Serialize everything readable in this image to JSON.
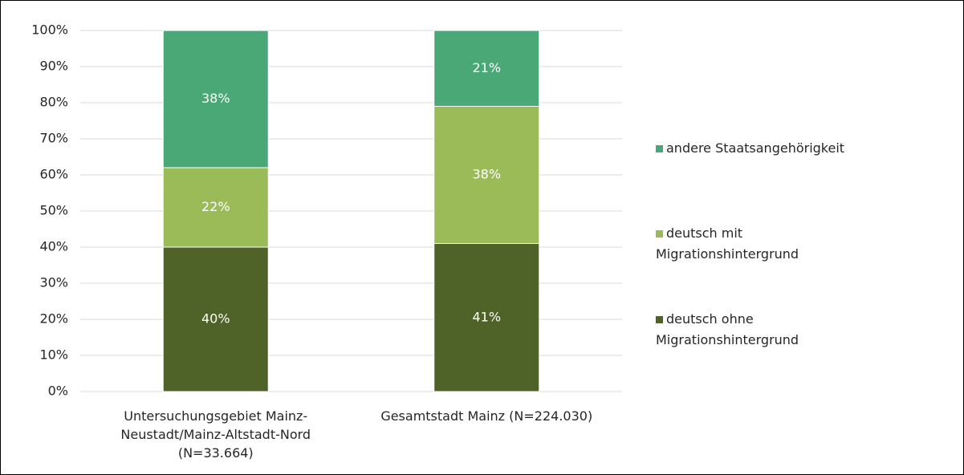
{
  "chart_data": {
    "type": "stacked_bar",
    "categories": [
      "Untersuchungsgebiet Mainz-Neustadt/Mainz-Altstadt-Nord (N=33.664)",
      "Gesamtstadt Mainz (N=224.030)"
    ],
    "series": [
      {
        "name": "deutsch ohne Migrationshintergrund",
        "color": "#4f6228",
        "values": [
          40,
          41
        ],
        "value_labels": [
          "40%",
          "41%"
        ]
      },
      {
        "name": "deutsch mit Migrationshintergrund",
        "color": "#9bbb59",
        "values": [
          22,
          38
        ],
        "value_labels": [
          "22%",
          "38%"
        ]
      },
      {
        "name": "andere Staatsangehörigkeit",
        "color": "#4aa877",
        "values": [
          38,
          21
        ],
        "value_labels": [
          "38%",
          "21%"
        ]
      }
    ],
    "ylim": [
      0,
      100
    ],
    "yticks": [
      {
        "value": 0,
        "label": "0%"
      },
      {
        "value": 10,
        "label": "10%"
      },
      {
        "value": 20,
        "label": "20%"
      },
      {
        "value": 30,
        "label": "30%"
      },
      {
        "value": 40,
        "label": "40%"
      },
      {
        "value": 50,
        "label": "50%"
      },
      {
        "value": 60,
        "label": "60%"
      },
      {
        "value": 70,
        "label": "70%"
      },
      {
        "value": 80,
        "label": "80%"
      },
      {
        "value": 90,
        "label": "90%"
      },
      {
        "value": 100,
        "label": "100%"
      }
    ],
    "grid": true,
    "legend": "right"
  }
}
